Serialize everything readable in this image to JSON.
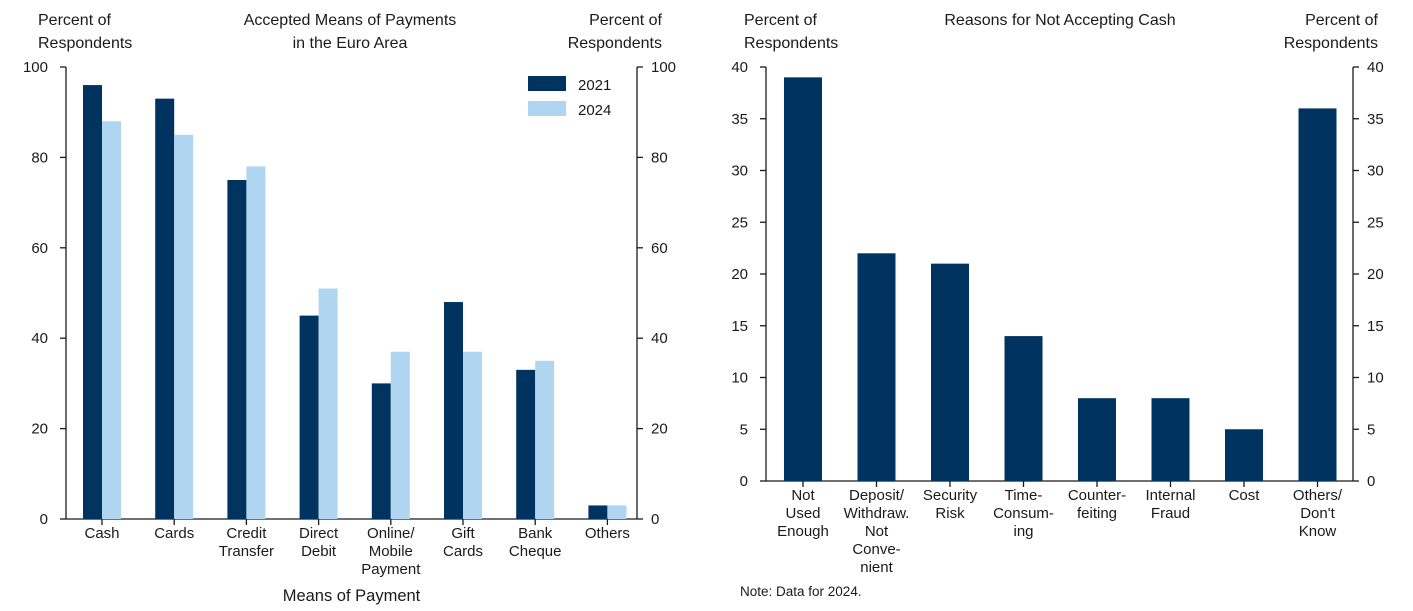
{
  "chart_data": [
    {
      "type": "bar",
      "title": "Accepted Means of Payments in the Euro Area",
      "title_lines": [
        "Accepted Means of Payments",
        "in the Euro Area"
      ],
      "ylabel_left_lines": [
        "Percent of",
        "Respondents"
      ],
      "ylabel_right_lines": [
        "Percent of",
        "Respondents"
      ],
      "xlabel": "Means of Payment",
      "ylim": [
        0,
        100
      ],
      "yticks": [
        0,
        20,
        40,
        60,
        80,
        100
      ],
      "categories": [
        [
          "Cash"
        ],
        [
          "Cards"
        ],
        [
          "Credit",
          "Transfer"
        ],
        [
          "Direct",
          "Debit"
        ],
        [
          "Online/",
          "Mobile",
          "Payment"
        ],
        [
          "Gift",
          "Cards"
        ],
        [
          "Bank",
          "Cheque"
        ],
        [
          "Others"
        ]
      ],
      "series": [
        {
          "name": "2021",
          "color": "#003360",
          "values": [
            96,
            93,
            75,
            45,
            30,
            48,
            33,
            3
          ]
        },
        {
          "name": "2024",
          "color": "#afd5f0",
          "values": [
            88,
            85,
            78,
            51,
            37,
            37,
            35,
            3
          ]
        }
      ],
      "legend": "top-right"
    },
    {
      "type": "bar",
      "title": "Reasons for Not Accepting Cash",
      "title_lines": [
        "Reasons for Not Accepting Cash"
      ],
      "ylabel_left_lines": [
        "Percent of",
        "Respondents"
      ],
      "ylabel_right_lines": [
        "Percent of",
        "Respondents"
      ],
      "ylim": [
        0,
        40
      ],
      "yticks": [
        0,
        5,
        10,
        15,
        20,
        25,
        30,
        35,
        40
      ],
      "categories": [
        [
          "Not",
          "Used",
          "Enough"
        ],
        [
          "Deposit/",
          "Withdraw.",
          "Not",
          "Conve-",
          "nient"
        ],
        [
          "Security",
          "Risk"
        ],
        [
          "Time-",
          "Consum-",
          "ing"
        ],
        [
          "Counter-",
          "feiting"
        ],
        [
          "Internal",
          "Fraud"
        ],
        [
          "Cost"
        ],
        [
          "Others/",
          "Don't",
          "Know"
        ]
      ],
      "series": [
        {
          "name": "2024",
          "color": "#003360",
          "values": [
            39,
            22,
            21,
            14,
            8,
            8,
            5,
            36
          ]
        }
      ],
      "note": "Note: Data for 2024."
    }
  ]
}
